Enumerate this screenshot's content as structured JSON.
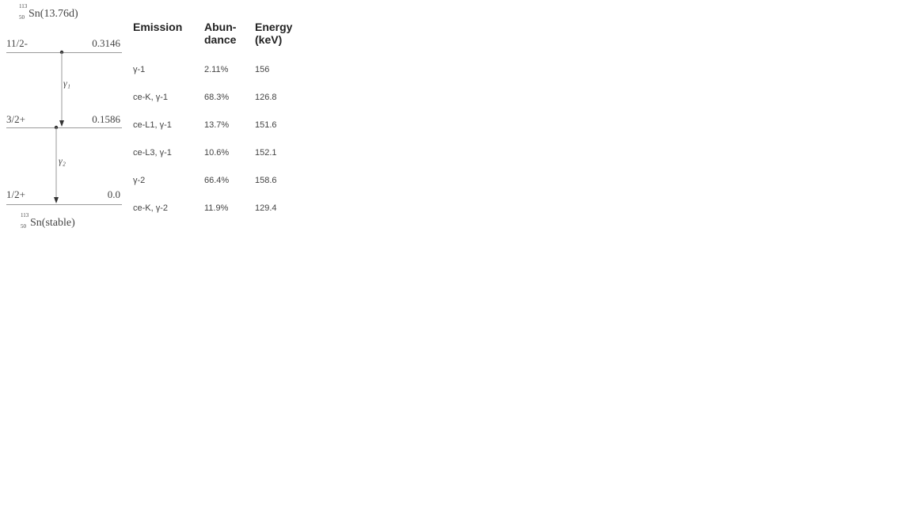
{
  "scheme": {
    "parent": {
      "mass": "113",
      "z": "50",
      "symbol": "Sn",
      "half_life": "(13.76d)"
    },
    "daughter": {
      "mass": "113",
      "z": "50",
      "symbol": "Sn",
      "state": "(stable)"
    },
    "levels": [
      {
        "spin": "11/2-",
        "energy": "0.3146"
      },
      {
        "spin": "3/2+",
        "energy": "0.1586"
      },
      {
        "spin": "1/2+",
        "energy": "0.0"
      }
    ],
    "transitions": [
      {
        "label": "γ₁"
      },
      {
        "label": "γ₂"
      }
    ]
  },
  "table": {
    "headers": {
      "emission": "Emission",
      "abundance_line1": "Abun-",
      "abundance_line2": "dance",
      "energy_line1": "Energy",
      "energy_line2": "(keV)"
    },
    "rows": [
      {
        "emission": "γ-1",
        "abundance": "2.11%",
        "energy": "156"
      },
      {
        "emission": "ce-K, γ-1",
        "abundance": "68.3%",
        "energy": "126.8"
      },
      {
        "emission": "ce-L1, γ-1",
        "abundance": "13.7%",
        "energy": "151.6"
      },
      {
        "emission": "ce-L3, γ-1",
        "abundance": "10.6%",
        "energy": "152.1"
      },
      {
        "emission": "γ-2",
        "abundance": "66.4%",
        "energy": "158.6"
      },
      {
        "emission": "ce-K, γ-2",
        "abundance": "11.9%",
        "energy": "129.4"
      }
    ]
  }
}
